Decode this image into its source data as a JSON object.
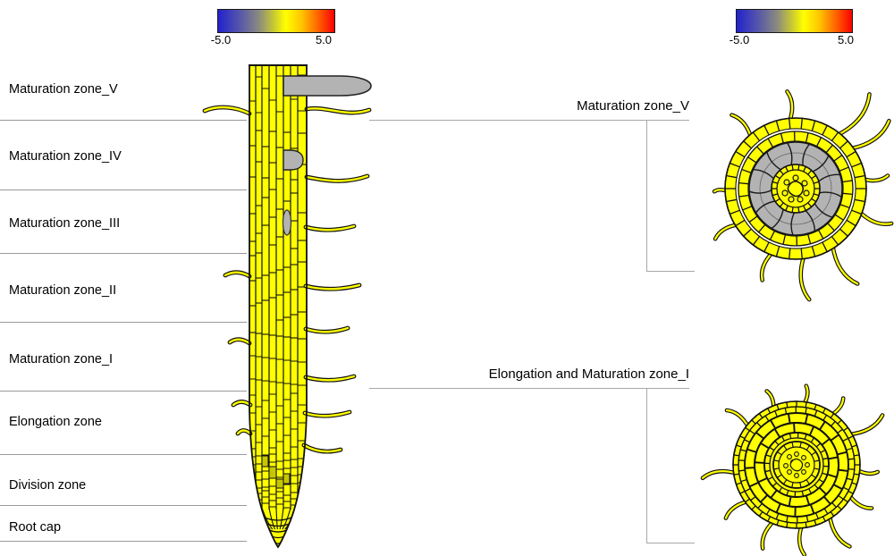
{
  "colorbars": {
    "left": {
      "min": "-5.0",
      "max": "5.0"
    },
    "right": {
      "min": "-5.0",
      "max": "5.0"
    }
  },
  "left_labels": [
    "Maturation zone_V",
    "Maturation zone_IV",
    "Maturation zone_III",
    "Maturation zone_II",
    "Maturation zone_I",
    "Elongation zone",
    "Division zone",
    "Root cap"
  ],
  "section_labels": {
    "top": "Maturation zone_V",
    "bottom": "Elongation and Maturation zone_I"
  },
  "colors": {
    "expression_yellow": "#ffff00",
    "masked_gray": "#b3b3b3",
    "outline_black": "#111111",
    "guide_gray": "#9a9a9a",
    "scale_min_blue": "#2222ce",
    "scale_max_red": "#fb0000"
  }
}
